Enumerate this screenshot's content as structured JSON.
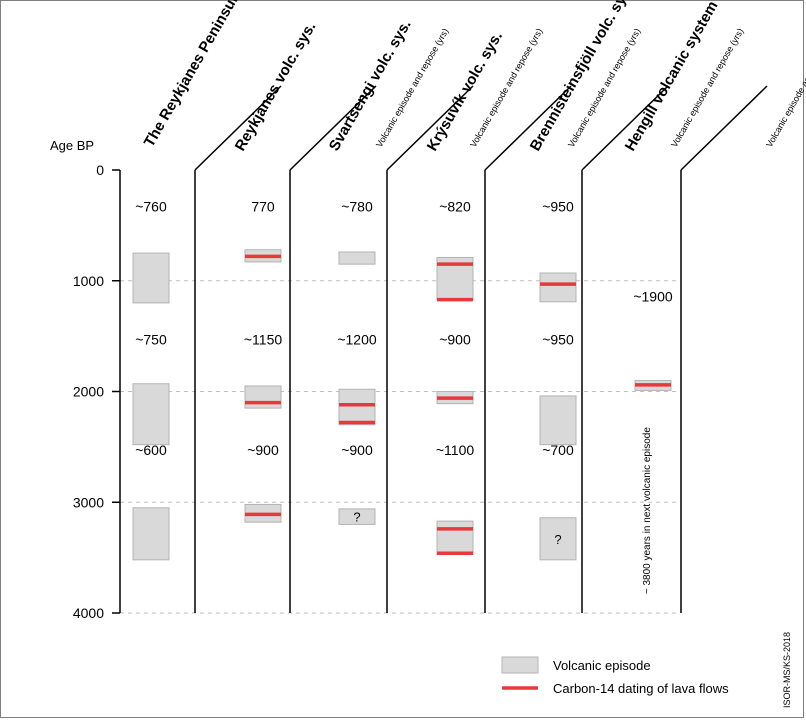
{
  "chart_data": {
    "type": "bar",
    "ylabel": "Age BP",
    "yticks": [
      0,
      1000,
      2000,
      3000,
      4000
    ],
    "ylim": [
      0,
      4000
    ],
    "grid": true,
    "overall_column": {
      "title": "The Reykjanes Peninsula",
      "labels": [
        {
          "text": "~760",
          "y": 330
        },
        {
          "text": "~750",
          "y": 1530
        },
        {
          "text": "~600",
          "y": 2530
        }
      ],
      "episodes": [
        {
          "start": 750,
          "end": 1200
        },
        {
          "start": 1930,
          "end": 2480
        },
        {
          "start": 3050,
          "end": 3520
        }
      ]
    },
    "systems": [
      {
        "name": "Reykjanes volc. sys.",
        "subtitle": "Volcanic episode and repose (yrs)",
        "labels": [
          {
            "text": "770",
            "y": 330
          },
          {
            "text": "~1150",
            "y": 1530
          },
          {
            "text": "~900",
            "y": 2530
          }
        ],
        "episodes": [
          {
            "start": 720,
            "end": 830,
            "note": ""
          },
          {
            "start": 1950,
            "end": 2150,
            "note": ""
          },
          {
            "start": 3020,
            "end": 3180,
            "note": ""
          }
        ],
        "c14": [
          780,
          2100,
          3110
        ]
      },
      {
        "name": "Svartsengi volc. sys.",
        "subtitle": "Volcanic episode and repose (yrs)",
        "labels": [
          {
            "text": "~780",
            "y": 330
          },
          {
            "text": "~1200",
            "y": 1530
          },
          {
            "text": "~900",
            "y": 2530
          }
        ],
        "episodes": [
          {
            "start": 740,
            "end": 850,
            "note": ""
          },
          {
            "start": 1980,
            "end": 2300,
            "note": ""
          },
          {
            "start": 3060,
            "end": 3200,
            "note": "?"
          }
        ],
        "c14": [
          2120,
          2280
        ]
      },
      {
        "name": "Krýsuvík volc. sys.",
        "subtitle": "Volcanic episode and repose (yrs)",
        "labels": [
          {
            "text": "~820",
            "y": 330
          },
          {
            "text": "~900",
            "y": 1530
          },
          {
            "text": "~1100",
            "y": 2530
          }
        ],
        "episodes": [
          {
            "start": 790,
            "end": 1170,
            "note": ""
          },
          {
            "start": 2000,
            "end": 2110,
            "note": ""
          },
          {
            "start": 3170,
            "end": 3470,
            "note": ""
          }
        ],
        "c14": [
          850,
          1170,
          2060,
          3240,
          3460
        ]
      },
      {
        "name": "Brennisteinsfjöll volc. sys.",
        "subtitle": "Volcanic episode and repose (yrs)",
        "labels": [
          {
            "text": "~950",
            "y": 330
          },
          {
            "text": "~950",
            "y": 1530
          },
          {
            "text": "~700",
            "y": 2530
          }
        ],
        "episodes": [
          {
            "start": 930,
            "end": 1190,
            "note": ""
          },
          {
            "start": 2040,
            "end": 2480,
            "note": ""
          },
          {
            "start": 3140,
            "end": 3520,
            "note": "?"
          }
        ],
        "c14": [
          1030
        ]
      },
      {
        "name": "Hengill volcanic system",
        "subtitle": "Volcanic episode and repose (yrs)",
        "labels": [
          {
            "text": "~1900",
            "y": 1140
          }
        ],
        "episodes": [
          {
            "start": 1900,
            "end": 1990,
            "note": ""
          }
        ],
        "c14": [
          1940
        ],
        "vertical_note": "~ 3800 years in next volcanic episode"
      }
    ],
    "legend": {
      "position": "bottom-right",
      "episode_label": "Volcanic episode",
      "c14_label": "Carbon-14 dating of lava flows"
    },
    "credit": "ISOR-MS/KS-2018"
  },
  "colors": {
    "episode_fill": "#d9d9d9",
    "episode_stroke": "#b3b3b3",
    "c14": "#e8383b",
    "grid": "#bfbfbf",
    "frame": "#7f7f7f"
  }
}
